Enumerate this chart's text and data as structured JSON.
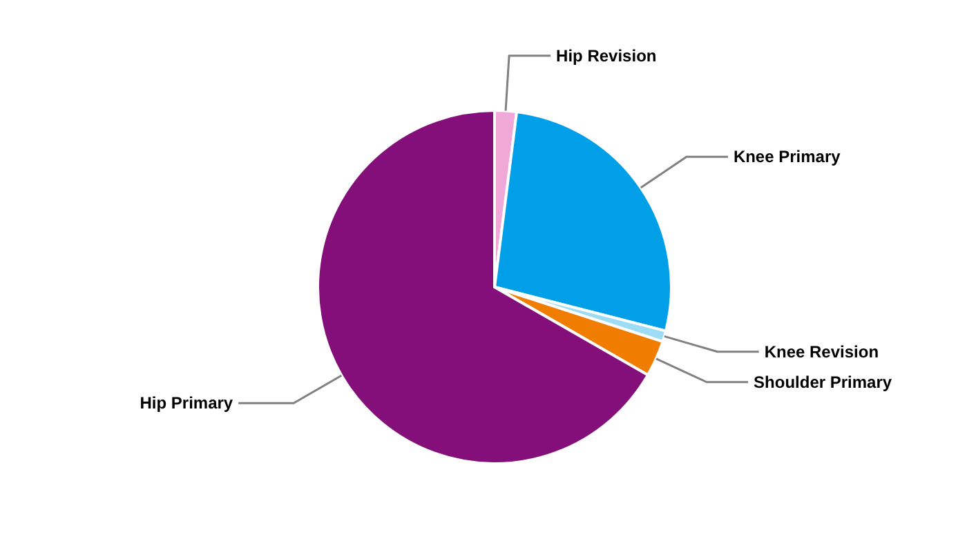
{
  "chart_data": {
    "type": "pie",
    "categories": [
      "Hip Revision",
      "Knee Primary",
      "Knee Revision",
      "Shoulder Primary",
      "Hip Primary"
    ],
    "values": [
      2,
      27,
      1,
      3.3,
      66.7
    ],
    "colors": [
      "#f0a8d8",
      "#009fe8",
      "#9ddcf5",
      "#f07d00",
      "#840e7a"
    ],
    "legend": false
  }
}
